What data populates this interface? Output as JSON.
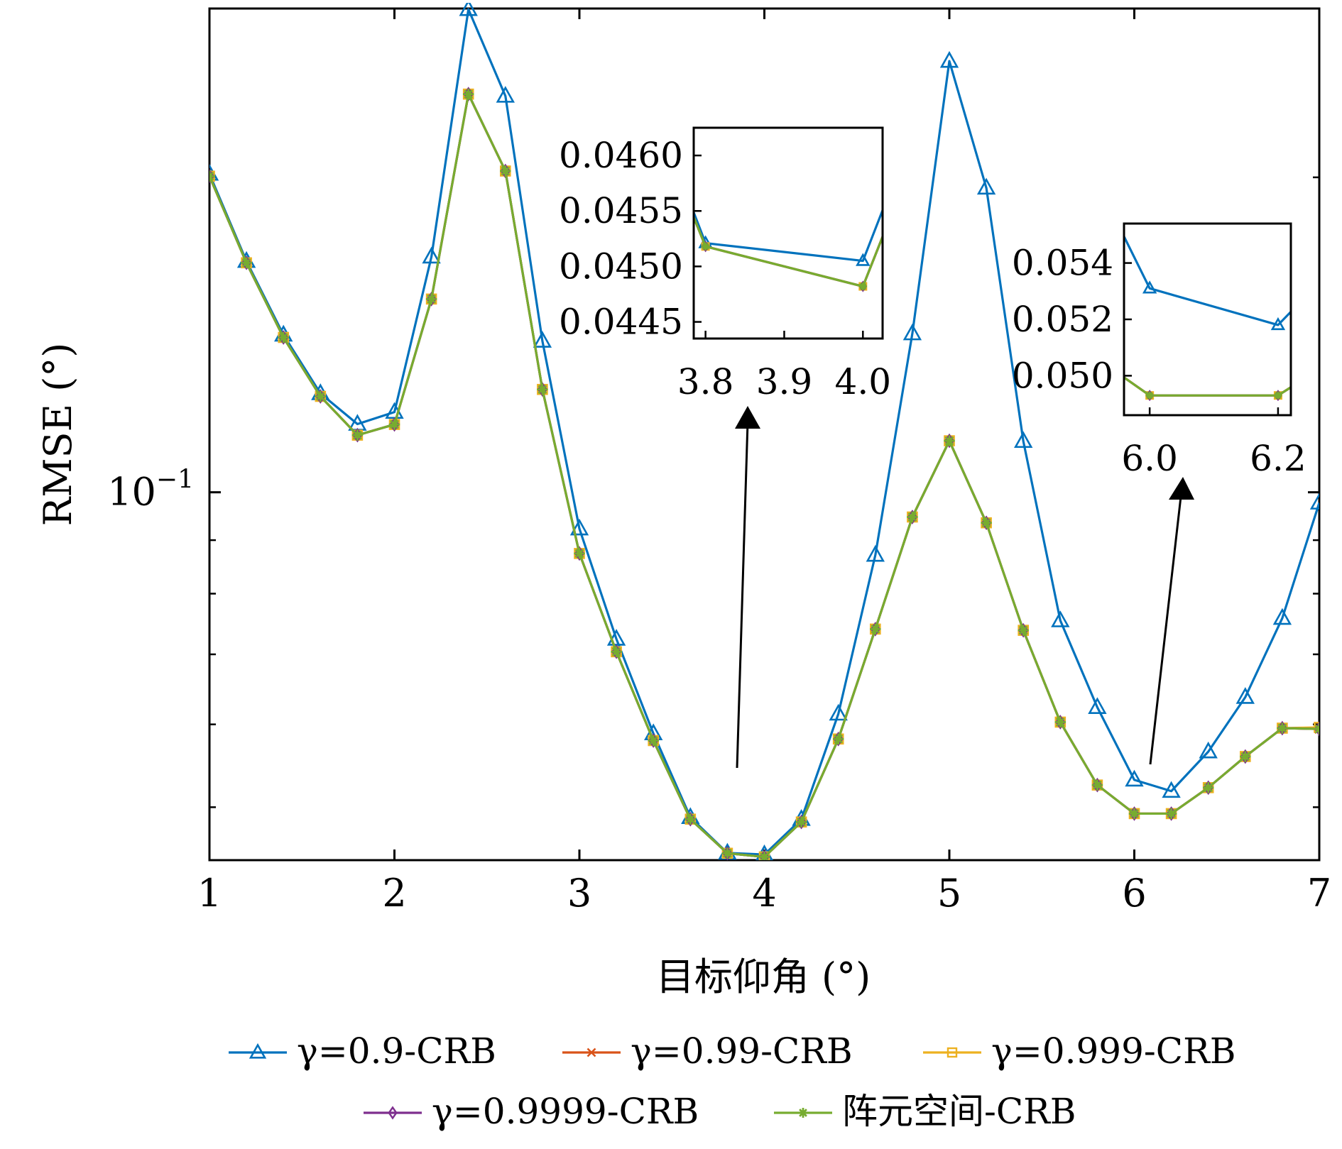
{
  "chart_data": {
    "type": "line",
    "title": "",
    "xlabel": "目标仰角 (°)",
    "ylabel": "RMSE (°)",
    "xlim": [
      1,
      7
    ],
    "ylim": [
      0.0445,
      0.29
    ],
    "yscale": "log",
    "grid": false,
    "legend_position": "bottom",
    "x_ticks": [
      "1",
      "2",
      "3",
      "4",
      "5",
      "6",
      "7"
    ],
    "y_ticks": [
      {
        "base": "10",
        "exp": "−1",
        "value": 0.1
      }
    ],
    "x": [
      1.0,
      1.2,
      1.4,
      1.6,
      1.8,
      2.0,
      2.2,
      2.4,
      2.6,
      2.8,
      3.0,
      3.2,
      3.4,
      3.6,
      3.8,
      4.0,
      4.2,
      4.4,
      4.6,
      4.8,
      5.0,
      5.2,
      5.4,
      5.6,
      5.8,
      6.0,
      6.2,
      6.4,
      6.6,
      6.8,
      7.0
    ],
    "series": [
      {
        "name": "γ=0.9-CRB",
        "color": "#0072BD",
        "marker": "triangle",
        "values": [
          0.2015,
          0.1663,
          0.1414,
          0.1243,
          0.1162,
          0.1193,
          0.1679,
          0.2895,
          0.2392,
          0.1395,
          0.0923,
          0.0724,
          0.0588,
          0.0489,
          0.04521,
          0.04505,
          0.0487,
          0.0614,
          0.0871,
          0.1418,
          0.2583,
          0.1954,
          0.1119,
          0.0754,
          0.0623,
          0.0531,
          0.0518,
          0.0565,
          0.0637,
          0.0758,
          0.0977
        ]
      },
      {
        "name": "γ=0.99-CRB",
        "color": "#D95319",
        "marker": "x",
        "values": [
          0.2005,
          0.1657,
          0.1406,
          0.1235,
          0.1134,
          0.1161,
          0.153,
          0.2402,
          0.2028,
          0.1254,
          0.0874,
          0.0704,
          0.0579,
          0.0487,
          0.04518,
          0.04482,
          0.0484,
          0.0581,
          0.074,
          0.0947,
          0.112,
          0.0935,
          0.0738,
          0.0603,
          0.0525,
          0.0493,
          0.0493,
          0.0522,
          0.0559,
          0.0595,
          0.0594
        ]
      },
      {
        "name": "γ=0.999-CRB",
        "color": "#EDB120",
        "marker": "square",
        "values": [
          0.2005,
          0.1657,
          0.1406,
          0.1235,
          0.1134,
          0.1161,
          0.153,
          0.2402,
          0.2028,
          0.1254,
          0.0874,
          0.0704,
          0.0579,
          0.0487,
          0.04518,
          0.04482,
          0.0484,
          0.0581,
          0.074,
          0.0947,
          0.112,
          0.0935,
          0.0738,
          0.0603,
          0.0525,
          0.0493,
          0.0493,
          0.0522,
          0.0559,
          0.0595,
          0.0596
        ]
      },
      {
        "name": "γ=0.9999-CRB",
        "color": "#7E2F8E",
        "marker": "diamond",
        "values": [
          0.2005,
          0.1657,
          0.1406,
          0.1235,
          0.1134,
          0.1161,
          0.153,
          0.2402,
          0.2028,
          0.1254,
          0.0874,
          0.0704,
          0.0579,
          0.0487,
          0.04518,
          0.04482,
          0.0484,
          0.0581,
          0.074,
          0.0947,
          0.112,
          0.0935,
          0.0738,
          0.0603,
          0.0525,
          0.0493,
          0.0493,
          0.0522,
          0.0559,
          0.0595,
          0.0594
        ]
      },
      {
        "name": "阵元空间-CRB",
        "color": "#77AC30",
        "marker": "star",
        "values": [
          0.2005,
          0.1657,
          0.1406,
          0.1235,
          0.1134,
          0.1161,
          0.153,
          0.2402,
          0.2028,
          0.1254,
          0.0874,
          0.0704,
          0.0579,
          0.0487,
          0.04518,
          0.04482,
          0.0484,
          0.0581,
          0.074,
          0.0947,
          0.112,
          0.0935,
          0.0738,
          0.0603,
          0.0525,
          0.0493,
          0.0493,
          0.0522,
          0.0559,
          0.0595,
          0.0594
        ]
      }
    ],
    "insets": [
      {
        "xlim": [
          3.785,
          4.025
        ],
        "ylim": [
          0.04435,
          0.04625
        ],
        "x_ticks": [
          "3.8",
          "3.9",
          "4.0"
        ],
        "y_ticks": [
          "0.0460",
          "0.0455",
          "0.0450",
          "0.0445"
        ]
      },
      {
        "xlim": [
          5.96,
          6.22
        ],
        "ylim": [
          0.0486,
          0.0554
        ],
        "x_ticks": [
          "6.0",
          "6.2"
        ],
        "y_ticks": [
          "0.054",
          "0.052",
          "0.050"
        ]
      }
    ]
  }
}
